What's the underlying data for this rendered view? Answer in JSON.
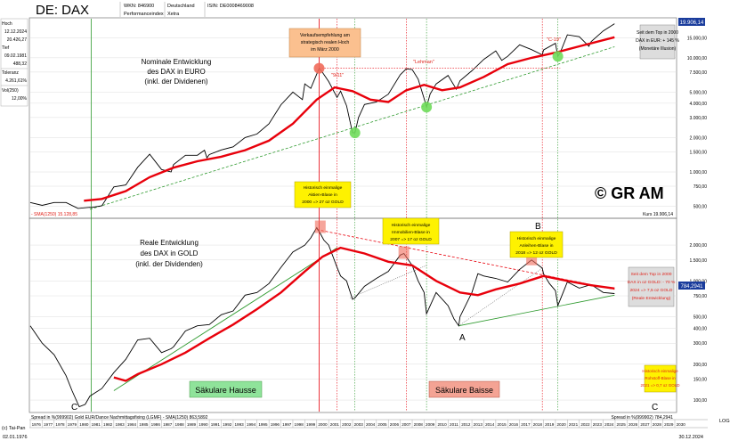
{
  "header": {
    "title": "DE: DAX",
    "wkn": "WKN: 846900",
    "country": "Deutschland",
    "isin": "ISIN: DE0008469008",
    "index_type": "Performanceindex",
    "exchange": "Xetra"
  },
  "info_panel": {
    "hoch_label": "Hoch",
    "hoch_date": "12.12.2024",
    "hoch_value": "20.426,27",
    "tief_label": "Tief",
    "tief_date": "09.02.1981",
    "tief_value": "488,32",
    "toleranz_label": "Toleranz",
    "toleranz_value": "4.261,61%",
    "vol_label": "Vol(250)",
    "vol_value": "12,00%"
  },
  "colors": {
    "price_line": "#000000",
    "sma_line": "#e8000b",
    "trend_line": "#2e9a2e",
    "resistance_line": "#e8000b",
    "callout_yellow": "#fef200",
    "callout_orange": "#fbc08f",
    "circle_green": "#6fdc5a",
    "circle_red": "#f06a5a",
    "label_red": "#e0221a",
    "box_hausse": "#8fe39a",
    "box_baisse": "#f4a394",
    "value_box": "#1a3c9c",
    "frame": "#777777",
    "grid": "#dddddd"
  },
  "top_panel": {
    "title_lines": [
      "Nominale Entwicklung",
      "des DAX in EURO",
      "(inkl. der Dividenen)"
    ],
    "sma_label": "- SMA(1250) 15.128,85",
    "kurs_label": "Kurs 19.906,14",
    "current_value": "19.906,14",
    "copyright": "© GR AM",
    "callout_2000_orange": [
      "Verkaufsempfehlung am",
      "strategisch realen Hoch",
      "im März 2000"
    ],
    "callout_2000_yellow": [
      "Historisch einmalige",
      "Aktien-Blase in",
      "2000 => 27 oz GOLD"
    ],
    "callout_2024": [
      "Seit dem Top in 2000",
      "DAX in EUR: + 145 %",
      "(Monetäre Illusion)"
    ],
    "label_911": "\"9/11\"",
    "label_lehman": "\"Lehman\"",
    "label_c19": "\"C-19\""
  },
  "bottom_panel": {
    "title_lines": [
      "Reale Entwicklung",
      "des DAX in GOLD",
      "(inkl. der Dividenden)"
    ],
    "callout_2007": [
      "Historisch einmalige",
      "Immobilien-Blase in",
      "2007 => 17 oz GOLD"
    ],
    "callout_2018": [
      "Historisch einmalige",
      "Anleihen-Blase in",
      "2018 => 12 oz GOLD"
    ],
    "callout_2024": [
      "Seit dem Top in 2000",
      "DAX in oz GOLD: - 70 %",
      "2024 => 7,5 oz GOLD",
      "(Reale Entwicklung)"
    ],
    "callout_2021": [
      "Historisch einmalige",
      "Rohstoff-Blase in",
      "2021 => 0,7 oz GOLD"
    ],
    "label_hausse": "Säkulare Hausse",
    "label_baisse": "Säkulare Baisse",
    "label_A": "A",
    "label_B": "B",
    "label_C_left": "C",
    "label_C_right": "C",
    "spread_left": "Spread in %(999902) Gold EUR/Dance Nachmittagsfixing (LGMF) - SMA(1250) 863,5892",
    "spread_right": "Spread in %(999902) 784,2941",
    "current_value": "784,2941"
  },
  "footer": {
    "copyright": "(c) Tai-Pan",
    "start_date": "02.01.1976",
    "end_date": "30.12.2024",
    "scale": "LOG"
  },
  "chart_data": [
    {
      "type": "line",
      "title": "Nominale Entwicklung des DAX in EURO (inkl. der Dividenen)",
      "y_scale": "log",
      "ylim": [
        400,
        22000
      ],
      "x_range": [
        1976,
        2030
      ],
      "y_ticks": [
        500,
        750,
        1000,
        1500,
        2000,
        3000,
        4000,
        5000,
        7500,
        10000,
        15000
      ],
      "y_tick_labels": [
        "500,00",
        "750,00",
        "1.000,00",
        "1.500,00",
        "2.000,00",
        "3.000,00",
        "4.000,00",
        "5.000,00",
        "7.500,00",
        "10.000,00",
        "15.000,00"
      ],
      "series": [
        {
          "name": "DAX",
          "x": [
            1976,
            1977,
            1978,
            1979,
            1980,
            1981,
            1981.1,
            1982,
            1983,
            1984,
            1985,
            1986,
            1987,
            1987.8,
            1988,
            1989,
            1990,
            1990.6,
            1990.8,
            1991,
            1992,
            1993,
            1994,
            1995,
            1996,
            1997,
            1998,
            1998.8,
            1999,
            1999.5,
            2000,
            2000.2,
            2000.5,
            2001,
            2001.7,
            2002,
            2002.5,
            2003,
            2003.2,
            2003.5,
            2004,
            2005,
            2006,
            2007,
            2007.5,
            2008,
            2008.5,
            2009,
            2009.2,
            2009.5,
            2010,
            2011,
            2011.7,
            2012,
            2013,
            2014,
            2015,
            2015.5,
            2016,
            2017,
            2018,
            2018.9,
            2019,
            2020,
            2020.2,
            2020.4,
            2021,
            2022,
            2022.8,
            2023,
            2024,
            2024.95
          ],
          "values": [
            540,
            510,
            540,
            540,
            480,
            490,
            488,
            505,
            740,
            770,
            1100,
            1430,
            1050,
            1000,
            1160,
            1400,
            1400,
            1550,
            1330,
            1420,
            1560,
            1660,
            2000,
            2150,
            2640,
            3880,
            5000,
            4300,
            5900,
            5400,
            7200,
            8100,
            7400,
            6200,
            4500,
            5100,
            3800,
            2200,
            2200,
            3000,
            3900,
            4100,
            4800,
            7100,
            8000,
            7900,
            6500,
            4400,
            3700,
            4800,
            5900,
            7000,
            5300,
            6300,
            7700,
            9700,
            11500,
            9500,
            10300,
            13000,
            11800,
            10600,
            11700,
            13400,
            10300,
            11100,
            15900,
            15300,
            12600,
            13900,
            17200,
            19906
          ]
        },
        {
          "name": "SMA(1250)",
          "x": [
            1980.5,
            1982,
            1984,
            1986,
            1988,
            1990,
            1992,
            1994,
            1996,
            1998,
            2000,
            2001.5,
            2003,
            2004.5,
            2006,
            2007.5,
            2009,
            2010.5,
            2012,
            2014,
            2016,
            2018,
            2020,
            2022,
            2024.95
          ],
          "values": [
            560,
            580,
            680,
            900,
            1090,
            1240,
            1360,
            1550,
            1880,
            2650,
            4300,
            5500,
            5100,
            4300,
            4100,
            5200,
            5800,
            5200,
            5500,
            6800,
            8800,
            10000,
            11100,
            12600,
            15129
          ]
        },
        {
          "name": "Trendlinie",
          "x": [
            1981,
            2024.95
          ],
          "values": [
            470,
            12500
          ]
        }
      ],
      "marked_points": [
        {
          "x": 2000.2,
          "y": 8100,
          "label": "Hoch März 2000"
        },
        {
          "x": 2003.2,
          "y": 2200,
          "label": ""
        },
        {
          "x": 2009.2,
          "y": 3700,
          "label": ""
        },
        {
          "x": 2020.2,
          "y": 10300,
          "label": ""
        }
      ]
    },
    {
      "type": "line",
      "title": "Reale Entwicklung des DAX in GOLD (inkl. der Dividenden)",
      "y_scale": "log",
      "ylim": [
        80,
        3300
      ],
      "x_range": [
        1976,
        2030
      ],
      "y_ticks": [
        100,
        150,
        200,
        300,
        400,
        500,
        750,
        1000,
        1500,
        2000
      ],
      "y_tick_labels": [
        "100,00",
        "150,00",
        "200,00",
        "300,00",
        "400,00",
        "500,00",
        "750,00",
        "1.000,00",
        "1.500,00",
        "2.000,00"
      ],
      "series": [
        {
          "name": "Spread in %(999902)",
          "x": [
            1976,
            1977,
            1978,
            1979,
            1979.5,
            1980.1,
            1980.6,
            1981,
            1982,
            1983,
            1984,
            1985,
            1986,
            1987,
            1987.8,
            1988,
            1989,
            1990,
            1991,
            1992,
            1993,
            1994,
            1995,
            1996,
            1997,
            1998,
            1999,
            1999.5,
            2000,
            2000.3,
            2000.6,
            2001,
            2001.7,
            2002,
            2002.5,
            2003,
            2003.2,
            2004,
            2005,
            2006,
            2007,
            2007.3,
            2008,
            2008.5,
            2009,
            2009.2,
            2010,
            2011,
            2011.5,
            2011.9,
            2012,
            2013,
            2013.5,
            2014,
            2015,
            2016,
            2017,
            2018,
            2018.9,
            2019,
            2019.5,
            2020,
            2020.2,
            2021,
            2022,
            2023,
            2024,
            2024.95
          ],
          "values": [
            420,
            300,
            240,
            160,
            120,
            88,
            92,
            108,
            125,
            170,
            220,
            320,
            330,
            250,
            270,
            280,
            380,
            420,
            430,
            520,
            560,
            760,
            800,
            950,
            1300,
            1750,
            2000,
            2300,
            2800,
            2500,
            2200,
            2000,
            1300,
            1100,
            1000,
            700,
            720,
            900,
            1050,
            1200,
            1650,
            1700,
            1350,
            1000,
            800,
            530,
            800,
            620,
            480,
            420,
            500,
            800,
            1150,
            1100,
            1050,
            980,
            1250,
            1500,
            1280,
            1150,
            950,
            830,
            620,
            980,
            870,
            930,
            800,
            784
          ]
        },
        {
          "name": "SMA(1250)",
          "x": [
            1983,
            1984,
            1985,
            1987,
            1989,
            1991,
            1993,
            1995,
            1997,
            1999,
            2000.5,
            2002,
            2004,
            2006,
            2008,
            2010,
            2012,
            2013.5,
            2015,
            2017,
            2019,
            2021,
            2023,
            2024.95
          ],
          "values": [
            155,
            145,
            165,
            200,
            250,
            330,
            430,
            580,
            800,
            1200,
            1600,
            1900,
            1700,
            1450,
            1350,
            1000,
            800,
            760,
            850,
            950,
            1100,
            1000,
            920,
            864
          ]
        },
        {
          "name": "Trendlinie Hausse",
          "x": [
            1983,
            2001.7
          ],
          "values": [
            120,
            1900
          ]
        },
        {
          "name": "Widerstand",
          "x": [
            2000,
            2024.95
          ],
          "values": [
            2700,
            850
          ]
        },
        {
          "name": "Unterstützung",
          "x": [
            2011.9,
            2024.95
          ],
          "values": [
            420,
            760
          ]
        }
      ]
    }
  ]
}
